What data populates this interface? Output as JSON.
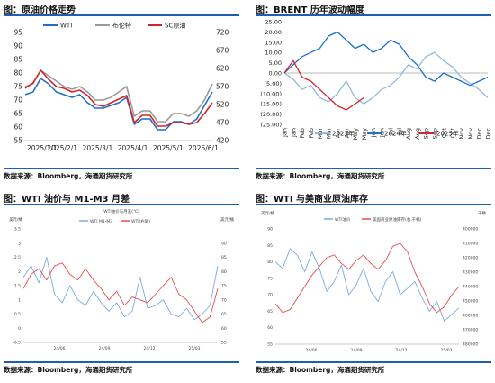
{
  "panels": [
    {
      "title": "图：原油价格走势",
      "source": "数据来源：Bloomberg，海通期货研究所"
    },
    {
      "title": "图：BRENT 历年波动幅度",
      "source": "数据来源：Bloomberg，海通期货研究所"
    },
    {
      "title": "图：WTI 油价与 M1-M3 月差",
      "source": "数据来源：Bloomberg，海通期货研究所"
    },
    {
      "title": "图：WTI 与美商业原油库存",
      "source": "数据来源：Bloomberg，海通期货研究所"
    }
  ],
  "colors": {
    "blue": "#1f6fc4",
    "gray": "#9a9a9a",
    "red": "#d0262f",
    "lightblue": "#92b8dd",
    "title_rule": "#1d5fb0",
    "plot_blue": "#7aa9e0",
    "plot_red": "#e0504e"
  },
  "chart_data": [
    {
      "type": "line",
      "title": "",
      "x": [
        "2025/1/1",
        "2025/1/8",
        "2025/1/15",
        "2025/1/22",
        "2025/1/29",
        "2025/2/5",
        "2025/2/12",
        "2025/2/19",
        "2025/2/26",
        "2025/3/5",
        "2025/3/12",
        "2025/3/19",
        "2025/3/26",
        "2025/4/2",
        "2025/4/9",
        "2025/4/16",
        "2025/4/23",
        "2025/4/30",
        "2025/5/7",
        "2025/5/14",
        "2025/5/21",
        "2025/5/28",
        "2025/6/4",
        "2025/6/11",
        "2025/6/18"
      ],
      "xticks": [
        "2025/1/1",
        "2025/2/1",
        "2025/3/1",
        "2025/4/1",
        "2025/5/1",
        "2025/6/1"
      ],
      "ylim": [
        55,
        95
      ],
      "yticks": [
        55,
        60,
        65,
        70,
        75,
        80,
        85,
        90,
        95
      ],
      "y2lim": [
        420,
        720
      ],
      "y2ticks": [
        420,
        470,
        520,
        570,
        620,
        670,
        720
      ],
      "legend_position": "top",
      "series": [
        {
          "name": "WTI",
          "axis": "left",
          "color": "blue",
          "values": [
            72,
            73,
            78,
            76,
            73,
            72,
            71,
            72,
            69,
            67,
            67,
            68,
            69,
            71,
            61,
            63,
            63,
            59,
            59,
            62,
            62,
            61,
            63,
            68,
            73
          ]
        },
        {
          "name": "布伦特",
          "axis": "left",
          "color": "gray",
          "values": [
            75,
            76,
            81,
            79,
            77,
            75,
            74,
            75,
            73,
            70,
            70,
            71,
            73,
            75,
            64,
            66,
            66,
            62,
            62,
            65,
            65,
            64,
            66,
            70,
            76
          ]
        },
        {
          "name": "SC原油",
          "axis": "right",
          "color": "red",
          "values": [
            565,
            580,
            615,
            590,
            570,
            565,
            555,
            560,
            545,
            520,
            515,
            525,
            535,
            545,
            470,
            490,
            490,
            460,
            460,
            470,
            470,
            465,
            470,
            495,
            525
          ]
        }
      ]
    },
    {
      "type": "line",
      "title": "",
      "categories": [
        "Jan",
        "Jan",
        "Feb",
        "Feb",
        "Mar",
        "Mar",
        "Apr",
        "Apr",
        "May",
        "May",
        "Jun",
        "Jun",
        "Jul",
        "Jul",
        "Aug",
        "Aug",
        "Sep",
        "Sep",
        "Oct",
        "Oct",
        "Nov",
        "Nov",
        "Dec",
        "Dec"
      ],
      "ylim": [
        -25,
        25
      ],
      "yticks": [
        "25.00",
        "20.00",
        "15.00",
        "10.00",
        "5.00",
        "0.00",
        "(5.00)",
        "(10.00)",
        "(15.00)",
        "(20.00)",
        "(25.00)"
      ],
      "legend_position": "bottom",
      "series": [
        {
          "name": "2023年",
          "color": "lightblue",
          "values": [
            0,
            -3,
            -8,
            -6,
            -12,
            -14,
            -10,
            -4,
            -12,
            -15,
            -12,
            -8,
            -6,
            -2,
            4,
            2,
            8,
            10,
            6,
            3,
            -2,
            -5,
            -8,
            -12
          ]
        },
        {
          "name": "2024年",
          "color": "blue",
          "values": [
            0,
            4,
            8,
            10,
            12,
            18,
            20,
            16,
            12,
            14,
            10,
            12,
            16,
            14,
            8,
            4,
            -2,
            -4,
            0,
            -2,
            -4,
            -6,
            -4,
            -2
          ]
        },
        {
          "name": "2025年",
          "color": "red",
          "values": [
            0,
            6,
            -2,
            -4,
            -8,
            -12,
            -16,
            -18,
            -15,
            -12,
            null,
            null,
            null,
            null,
            null,
            null,
            null,
            null,
            null,
            null,
            null,
            null,
            null,
            null
          ]
        }
      ]
    },
    {
      "type": "line",
      "title": "WTI油价与月差(℃)",
      "xticks": [
        "24/06",
        "24/09",
        "24/12",
        "25/03"
      ],
      "ylim": [
        -0.5,
        3.5
      ],
      "yticks": [
        "3.5",
        "3",
        "2.5",
        "2",
        "1.5",
        "1",
        "0.5",
        "0",
        "-0.5"
      ],
      "y2lim": [
        55,
        95
      ],
      "y2ticks": [
        "90",
        "85",
        "80",
        "75",
        "70",
        "65",
        "60",
        "55"
      ],
      "left_unit": "美元/桶",
      "right_unit": "美元/桶",
      "legend_position": "top",
      "series": [
        {
          "name": "WTI M1-M3",
          "axis": "left",
          "color": "blue",
          "values": [
            1.8,
            2.2,
            1.6,
            2.5,
            1.2,
            0.9,
            1.5,
            1.0,
            0.8,
            1.3,
            0.9,
            0.6,
            0.9,
            0.4,
            0.6,
            1.8,
            0.7,
            0.8,
            1.0,
            0.5,
            0.4,
            0.7,
            0.3,
            0.5,
            0.8,
            2.2
          ]
        },
        {
          "name": "WTI(右轴)",
          "axis": "right",
          "color": "red",
          "values": [
            74,
            79,
            81,
            77,
            82,
            83,
            79,
            77,
            81,
            77,
            74,
            70,
            73,
            68,
            71,
            70,
            69,
            72,
            75,
            78,
            72,
            70,
            66,
            62,
            64,
            74
          ]
        }
      ]
    },
    {
      "type": "line",
      "title": "",
      "xticks": [
        "24/06",
        "24/09",
        "24/12",
        "25/03"
      ],
      "ylim": [
        55,
        90
      ],
      "yticks": [
        "90",
        "85",
        "80",
        "75",
        "70",
        "65",
        "60",
        "55"
      ],
      "y2lim": [
        400000,
        480000
      ],
      "y2ticks": [
        "400000",
        "410000",
        "420000",
        "430000",
        "440000",
        "450000",
        "460000",
        "470000",
        "480000"
      ],
      "left_unit": "美元/桶",
      "right_unit": "千桶",
      "legend_position": "top",
      "series": [
        {
          "name": "WTI油价",
          "axis": "left",
          "color": "blue",
          "values": [
            80,
            78,
            84,
            82,
            77,
            83,
            78,
            71,
            74,
            79,
            70,
            73,
            78,
            71,
            68,
            74,
            77,
            70,
            72,
            74,
            69,
            65,
            68,
            62,
            64,
            66
          ]
        },
        {
          "name": "美国商业原油库存(右,千桶)",
          "axis": "right",
          "color": "red",
          "values": [
            452,
            458,
            456,
            448,
            440,
            432,
            426,
            420,
            418,
            424,
            428,
            422,
            418,
            424,
            428,
            422,
            412,
            410,
            416,
            430,
            440,
            452,
            458,
            454,
            446,
            440
          ]
        }
      ]
    }
  ]
}
